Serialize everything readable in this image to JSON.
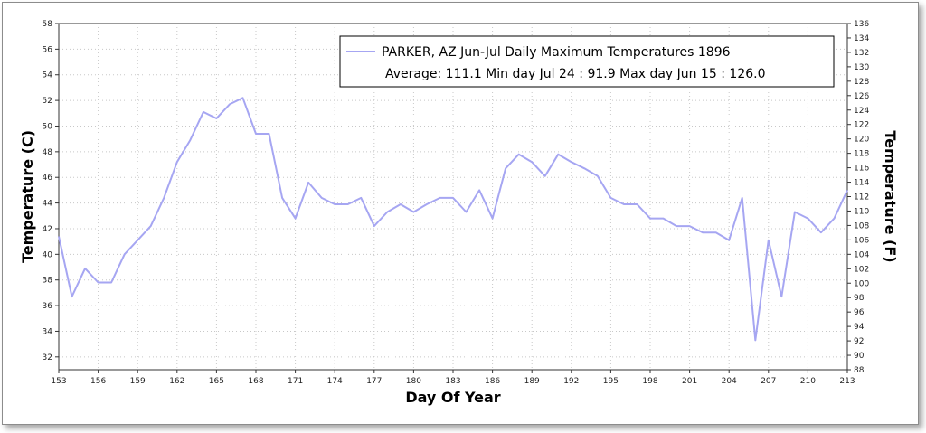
{
  "chart_data": {
    "type": "line",
    "xlabel": "Day Of Year",
    "ylabel_left": "Temperature (C)",
    "ylabel_right": "Temperature (F)",
    "xlim": [
      153,
      213
    ],
    "x_ticks": [
      153,
      156,
      159,
      162,
      165,
      168,
      171,
      174,
      177,
      180,
      183,
      186,
      189,
      192,
      195,
      198,
      201,
      204,
      207,
      210,
      213
    ],
    "ylim_c": [
      31,
      58
    ],
    "y_ticks_c": [
      32,
      34,
      36,
      38,
      40,
      42,
      44,
      46,
      48,
      50,
      52,
      54,
      56,
      58
    ],
    "ylim_f": [
      88,
      136
    ],
    "y_ticks_f": [
      88,
      90,
      92,
      94,
      96,
      98,
      100,
      102,
      104,
      106,
      108,
      110,
      112,
      114,
      116,
      118,
      120,
      122,
      124,
      126,
      128,
      130,
      132,
      134,
      136
    ],
    "grid": true,
    "legend": {
      "placement": "top-right",
      "line1": "PARKER, AZ  Jun-Jul  Daily Maximum Temperatures 1896",
      "line2": "Average: 111.1  Min day Jul 24 : 91.9  Max day Jun 15 : 126.0"
    },
    "series": [
      {
        "color": "#a6a6f2",
        "x": [
          153,
          154,
          155,
          156,
          157,
          158,
          159,
          160,
          161,
          162,
          163,
          164,
          165,
          166,
          167,
          168,
          169,
          170,
          171,
          172,
          173,
          174,
          175,
          176,
          177,
          178,
          179,
          180,
          181,
          182,
          183,
          184,
          185,
          186,
          187,
          188,
          189,
          190,
          191,
          192,
          193,
          194,
          195,
          196,
          197,
          198,
          199,
          200,
          201,
          202,
          203,
          204,
          205,
          206,
          207,
          208,
          209,
          210,
          211,
          212,
          213
        ],
        "values": [
          41.4,
          36.7,
          38.9,
          37.8,
          37.8,
          40.0,
          41.1,
          42.2,
          44.4,
          47.2,
          48.9,
          51.1,
          50.6,
          51.7,
          52.2,
          49.4,
          49.4,
          44.4,
          42.8,
          45.6,
          44.4,
          43.9,
          43.9,
          44.4,
          42.2,
          43.3,
          43.9,
          43.3,
          43.9,
          44.4,
          44.4,
          43.3,
          45.0,
          42.8,
          46.7,
          47.8,
          47.2,
          46.1,
          47.8,
          47.2,
          46.7,
          46.1,
          44.4,
          43.9,
          43.9,
          42.8,
          42.8,
          42.2,
          42.2,
          41.7,
          41.7,
          41.1,
          44.4,
          33.3,
          41.1,
          36.7,
          43.3,
          42.8,
          41.7,
          42.8,
          45.0
        ]
      }
    ]
  }
}
